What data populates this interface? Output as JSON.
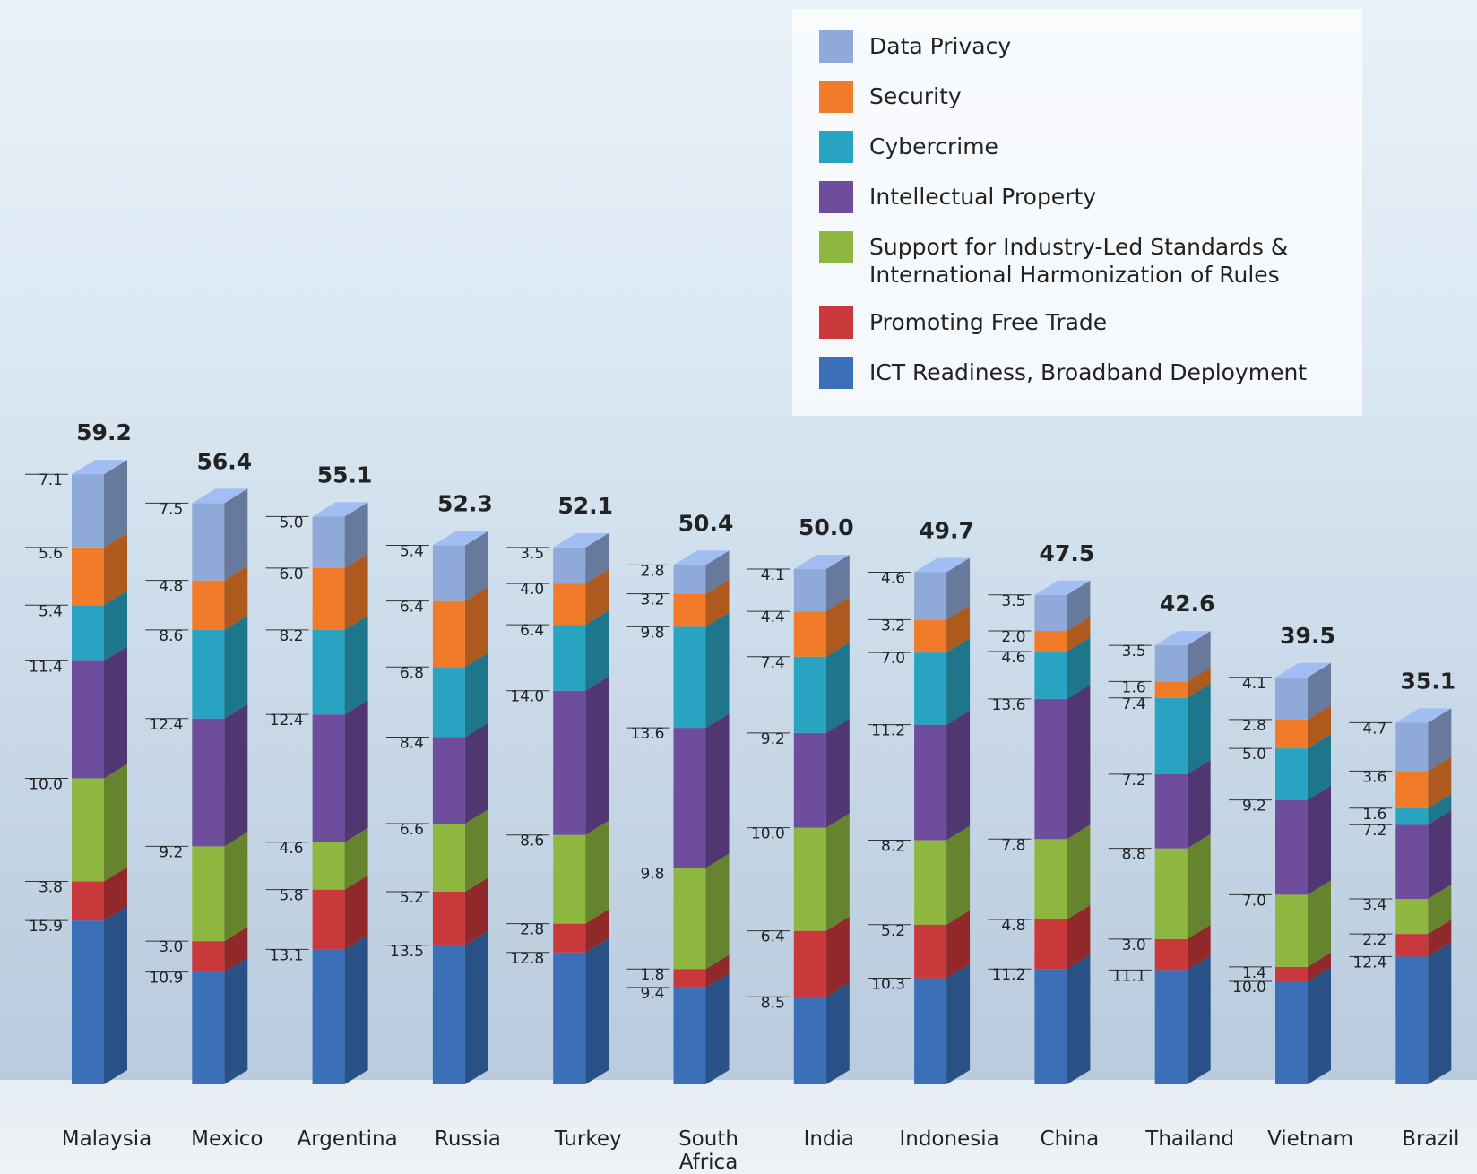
{
  "chart_data": {
    "type": "stacked-bar-3d",
    "categories": [
      "Malaysia",
      "Mexico",
      "Argentina",
      "Russia",
      "Turkey",
      "South Africa",
      "India",
      "Indonesia",
      "China",
      "Thailand",
      "Vietnam",
      "Brazil"
    ],
    "series": [
      {
        "name": "Data Privacy",
        "color": "#8faad9",
        "values": [
          7.1,
          7.5,
          5.0,
          5.4,
          3.5,
          2.8,
          4.1,
          4.6,
          3.5,
          3.5,
          4.1,
          4.7
        ],
        "value_labels": [
          "7.1",
          "7.5",
          "5.0",
          "5.4",
          "3.5",
          "2.8",
          "4.1",
          "4.6",
          "3.5",
          "3.5",
          "4.1",
          "4.7"
        ]
      },
      {
        "name": "Security",
        "color": "#f27b2a",
        "values": [
          5.6,
          4.8,
          6.0,
          6.4,
          4.0,
          3.2,
          4.4,
          3.2,
          2.0,
          1.6,
          2.8,
          3.6
        ],
        "value_labels": [
          "5.6",
          "4.8",
          "6.0",
          "6.4",
          "4.0",
          "3.2",
          "4.4",
          "3.2",
          "2.0",
          "1.6",
          "2.8",
          "3.6"
        ]
      },
      {
        "name": "Cybercrime",
        "color": "#28a4c2",
        "values": [
          5.4,
          8.6,
          8.2,
          6.8,
          6.4,
          9.8,
          7.4,
          7.0,
          4.6,
          7.4,
          5.0,
          1.6
        ],
        "value_labels": [
          "5.4",
          "8.6",
          "8.2",
          "6.8",
          "6.4",
          "9.8",
          "7.4",
          "7.0",
          "4.6",
          "7.4",
          "5.0",
          "1.6"
        ]
      },
      {
        "name": "Intellectual Property",
        "color": "#6f4d9d",
        "values": [
          11.4,
          12.4,
          12.4,
          8.4,
          14.0,
          13.6,
          9.2,
          11.2,
          13.6,
          7.2,
          9.2,
          7.2
        ],
        "value_labels": [
          "11.4",
          "12.4",
          "12.4",
          "8.4",
          "14.0",
          "13.6",
          "9.2",
          "11.2",
          "13.6",
          "7.2",
          "9.2",
          "7.2"
        ]
      },
      {
        "name": "Support for Industry-Led Standards & International Harmonization of Rules",
        "color": "#8db73e",
        "values": [
          10.0,
          9.2,
          4.6,
          6.6,
          8.6,
          9.8,
          10.0,
          8.2,
          7.8,
          8.8,
          7.0,
          3.4
        ],
        "value_labels": [
          "10.0",
          "9.2",
          "4.6",
          "6.6",
          "8.6",
          "9.8",
          "10.0",
          "8.2",
          "7.8",
          "8.8",
          "7.0",
          "3.4"
        ]
      },
      {
        "name": "Promoting Free Trade",
        "color": "#c9393b",
        "values": [
          3.8,
          3.0,
          5.8,
          5.2,
          2.8,
          1.8,
          6.4,
          5.2,
          4.8,
          3.0,
          1.4,
          2.2
        ],
        "value_labels": [
          "3.8",
          "3.0",
          "5.8",
          "5.2",
          "2.8",
          "1.8",
          "6.4",
          "5.2",
          "4.8",
          "3.0",
          "1.4",
          "2.2"
        ]
      },
      {
        "name": "ICT Readiness, Broadband Deployment",
        "color": "#3b70b9",
        "values": [
          15.9,
          10.9,
          13.1,
          13.5,
          12.8,
          9.4,
          8.5,
          10.3,
          11.2,
          11.1,
          10.0,
          12.4
        ],
        "value_labels": [
          "15.9",
          "10.9",
          "13.1",
          "13.5",
          "12.8",
          "9.4",
          "8.5",
          "10.3",
          "11.2",
          "11.1",
          "10.0",
          "12.4"
        ]
      }
    ],
    "totals": {
      "values": [
        59.2,
        56.4,
        55.1,
        52.3,
        52.1,
        50.4,
        50.0,
        49.7,
        47.5,
        42.6,
        39.5,
        35.1
      ],
      "value_labels": [
        "59.2",
        "56.4",
        "55.1",
        "52.3",
        "52.1",
        "50.4",
        "50.0",
        "49.7",
        "47.5",
        "42.6",
        "39.5",
        "35.1"
      ]
    }
  }
}
